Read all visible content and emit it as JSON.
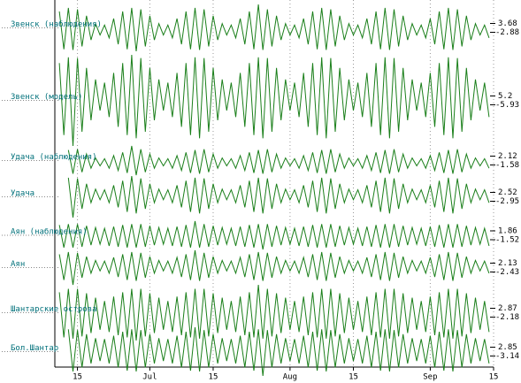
{
  "chart_data": {
    "type": "line",
    "grid": true,
    "xlim": [
      9,
      106
    ],
    "xticks": [
      {
        "value": 14,
        "label": "15"
      },
      {
        "value": 30,
        "label": "Jul"
      },
      {
        "value": 44,
        "label": "15"
      },
      {
        "value": 61,
        "label": "Aug"
      },
      {
        "value": 75,
        "label": "15"
      },
      {
        "value": 92,
        "label": "Sep"
      },
      {
        "value": 106,
        "label": "15"
      }
    ],
    "x": [
      10,
      11,
      12,
      13,
      14,
      15,
      16,
      17,
      18,
      19,
      20,
      21,
      22,
      23,
      24,
      25,
      26,
      27,
      28,
      29,
      30,
      31,
      32,
      33,
      34,
      35,
      36,
      37,
      38,
      39,
      40,
      41,
      42,
      43,
      44,
      45,
      46,
      47,
      48,
      49,
      50,
      51,
      52,
      53,
      54,
      55,
      56,
      57,
      58,
      59,
      60,
      61,
      62,
      63,
      64,
      65,
      66,
      67,
      68,
      69,
      70,
      71,
      72,
      73,
      74,
      75,
      76,
      77,
      78,
      79,
      80,
      81,
      82,
      83,
      84,
      85,
      86,
      87,
      88,
      89,
      90,
      91,
      92,
      93,
      94,
      95,
      96,
      97,
      98,
      99,
      100,
      101,
      102,
      103,
      104,
      105
    ],
    "series": [
      {
        "name": "Звенск (наблюдения)",
        "color": "#1a7f1a",
        "ylim": [
          -2.88,
          3.68
        ],
        "values": [
          2.7,
          -2.6,
          3.2,
          -2.7,
          3.0,
          -2.2,
          2.1,
          -1.3,
          1.0,
          -0.6,
          0.8,
          -1.0,
          1.7,
          -1.9,
          2.7,
          -2.6,
          3.2,
          -2.88,
          3.0,
          -2.2,
          2.1,
          -1.3,
          1.0,
          -0.6,
          0.8,
          -1.0,
          1.7,
          -1.9,
          2.7,
          -2.6,
          3.2,
          -2.7,
          3.0,
          -2.2,
          2.1,
          -1.3,
          1.0,
          -0.6,
          0.8,
          -1.0,
          1.7,
          -1.9,
          2.7,
          -2.6,
          3.68,
          -2.7,
          3.0,
          -2.2,
          2.1,
          -1.3,
          1.0,
          -0.6,
          0.8,
          -1.0,
          1.7,
          -1.9,
          2.7,
          -2.6,
          3.2,
          -2.7,
          3.0,
          -2.2,
          2.1,
          -1.3,
          1.0,
          -0.6,
          0.8,
          -1.0,
          1.7,
          -1.9,
          2.7,
          -2.6,
          3.2,
          -2.7,
          3.0,
          -2.2,
          2.1,
          -1.3,
          1.0,
          -0.6,
          0.8,
          -1.0,
          1.7,
          -1.9,
          2.7,
          -2.6,
          3.2,
          -2.7,
          3.0,
          -2.2,
          2.1,
          -1.3,
          1.0,
          -0.6,
          0.8,
          -1.0
        ]
      },
      {
        "name": "Звенск (модель)",
        "color": "#1a7f1a",
        "ylim": [
          -5.93,
          5.2
        ],
        "values": [
          4.2,
          -4.6,
          4.9,
          -5.93,
          4.8,
          -4.2,
          3.6,
          -2.8,
          2.2,
          -1.6,
          1.8,
          -2.4,
          3.0,
          -3.6,
          4.2,
          -4.6,
          5.2,
          -5.0,
          4.8,
          -4.2,
          3.6,
          -2.8,
          2.2,
          -1.6,
          1.8,
          -2.4,
          3.0,
          -3.6,
          4.2,
          -4.6,
          4.9,
          -5.0,
          4.8,
          -4.2,
          3.6,
          -2.8,
          2.2,
          -1.6,
          1.8,
          -2.4,
          3.0,
          -3.6,
          4.2,
          -4.6,
          4.9,
          -5.0,
          4.8,
          -4.2,
          3.6,
          -2.8,
          2.2,
          -1.6,
          1.8,
          -2.4,
          3.0,
          -3.6,
          4.2,
          -4.6,
          4.9,
          -5.0,
          4.8,
          -4.2,
          3.6,
          -2.8,
          2.2,
          -1.6,
          1.8,
          -2.4,
          3.0,
          -3.6,
          4.2,
          -4.6,
          4.9,
          -5.0,
          4.8,
          -4.2,
          3.6,
          -2.8,
          2.2,
          -1.6,
          1.8,
          -2.4,
          3.0,
          -3.6,
          4.2,
          -4.6,
          4.9,
          -5.0,
          4.8,
          -4.2,
          3.6,
          -2.8,
          2.2,
          -1.6,
          1.8,
          -2.4
        ]
      },
      {
        "name": "Удача (наблюдения)",
        "color": "#1a7f1a",
        "ylim": [
          -1.58,
          2.12
        ],
        "values": [
          null,
          null,
          1.6,
          -1.4,
          1.7,
          -1.2,
          1.1,
          -0.7,
          0.6,
          -0.4,
          0.5,
          -0.7,
          0.9,
          -1.0,
          1.3,
          -1.3,
          2.12,
          -1.58,
          1.7,
          -1.2,
          1.1,
          -0.7,
          0.6,
          -0.4,
          0.5,
          -0.7,
          0.9,
          -1.0,
          1.3,
          -1.3,
          1.6,
          -1.4,
          1.7,
          -1.2,
          1.1,
          -0.7,
          0.6,
          -0.4,
          0.5,
          -0.7,
          0.9,
          -1.0,
          1.3,
          -1.3,
          1.6,
          -1.4,
          1.7,
          -1.2,
          1.1,
          -0.7,
          0.6,
          -0.4,
          0.5,
          -0.7,
          0.9,
          -1.0,
          1.3,
          -1.3,
          1.6,
          -1.4,
          1.7,
          -1.2,
          1.1,
          -0.7,
          0.6,
          -0.4,
          0.5,
          -0.7,
          0.9,
          -1.0,
          1.3,
          -1.3,
          1.6,
          -1.4,
          1.7,
          -1.2,
          1.1,
          -0.7,
          0.6,
          -0.4,
          0.5,
          -0.7,
          0.9,
          -1.0,
          1.3,
          -1.3,
          1.6,
          -1.4,
          1.7,
          -1.2,
          1.1,
          -0.7,
          0.6,
          -0.4,
          0.5,
          -0.7
        ]
      },
      {
        "name": "Удача",
        "color": "#1a7f1a",
        "ylim": [
          -2.95,
          2.52
        ],
        "values": [
          null,
          null,
          2.3,
          -2.95,
          2.2,
          -1.8,
          1.5,
          -1.0,
          0.8,
          -0.6,
          0.7,
          -1.0,
          1.3,
          -1.6,
          1.9,
          -2.2,
          2.52,
          -2.4,
          2.2,
          -1.8,
          1.5,
          -1.0,
          0.8,
          -0.6,
          0.7,
          -1.0,
          1.3,
          -1.6,
          1.9,
          -2.2,
          2.3,
          -2.4,
          2.2,
          -1.8,
          1.5,
          -1.0,
          0.8,
          -0.6,
          0.7,
          -1.0,
          1.3,
          -1.6,
          1.9,
          -2.2,
          2.3,
          -2.4,
          2.2,
          -1.8,
          1.5,
          -1.0,
          0.8,
          -0.6,
          0.7,
          -1.0,
          1.3,
          -1.6,
          1.9,
          -2.2,
          2.3,
          -2.4,
          2.2,
          -1.8,
          1.5,
          -1.0,
          0.8,
          -0.6,
          0.7,
          -1.0,
          1.3,
          -1.6,
          1.9,
          -2.2,
          2.3,
          -2.4,
          2.2,
          -1.8,
          1.5,
          -1.0,
          0.8,
          -0.6,
          0.7,
          -1.0,
          1.3,
          -1.6,
          1.9,
          -2.2,
          2.3,
          -2.4,
          2.2,
          -1.8,
          1.5,
          -1.0,
          0.8,
          -0.6,
          0.7,
          -1.0
        ]
      },
      {
        "name": "Аян (наблюдения)",
        "color": "#1a7f1a",
        "ylim": [
          -1.52,
          1.86
        ],
        "values": [
          1.4,
          -1.3,
          1.5,
          -1.3,
          1.5,
          -1.2,
          1.3,
          -1.0,
          1.1,
          -0.9,
          1.0,
          -1.1,
          1.2,
          -1.2,
          1.4,
          -1.3,
          1.5,
          -1.3,
          1.5,
          -1.2,
          1.3,
          -1.0,
          1.1,
          -0.9,
          1.0,
          -1.1,
          1.2,
          -1.2,
          1.4,
          -1.3,
          1.86,
          -1.3,
          1.5,
          -1.2,
          1.3,
          -1.0,
          1.1,
          -0.9,
          1.0,
          -1.1,
          1.2,
          -1.2,
          1.4,
          -1.3,
          1.5,
          -1.52,
          1.5,
          -1.2,
          1.3,
          -1.0,
          1.1,
          -0.9,
          1.0,
          -1.1,
          1.2,
          -1.2,
          1.4,
          -1.3,
          1.5,
          -1.3,
          1.5,
          -1.2,
          1.3,
          -1.0,
          1.1,
          -0.9,
          1.0,
          -1.1,
          1.2,
          -1.2,
          1.4,
          -1.3,
          1.5,
          -1.3,
          1.5,
          -1.2,
          1.3,
          -1.0,
          1.1,
          -0.9,
          1.0,
          -1.1,
          1.2,
          -1.2,
          1.4,
          -1.3,
          1.5,
          -1.3,
          1.5,
          -1.2,
          1.3,
          -1.0,
          1.1,
          -0.9,
          1.0,
          -1.1
        ]
      },
      {
        "name": "Аян",
        "color": "#1a7f1a",
        "ylim": [
          -2.43,
          2.13
        ],
        "values": [
          1.6,
          -1.8,
          1.9,
          -2.43,
          1.8,
          -1.5,
          1.3,
          -0.9,
          0.8,
          -0.6,
          0.7,
          -0.9,
          1.2,
          -1.4,
          1.6,
          -1.8,
          1.9,
          -1.9,
          1.8,
          -1.5,
          1.3,
          -0.9,
          0.8,
          -0.6,
          0.7,
          -0.9,
          1.2,
          -1.4,
          1.6,
          -1.8,
          2.13,
          -1.9,
          1.8,
          -1.5,
          1.3,
          -0.9,
          0.8,
          -0.6,
          0.7,
          -0.9,
          1.2,
          -1.4,
          1.6,
          -1.8,
          1.9,
          -1.9,
          1.8,
          -1.5,
          1.3,
          -0.9,
          0.8,
          -0.6,
          0.7,
          -0.9,
          1.2,
          -1.4,
          1.6,
          -1.8,
          1.9,
          -1.9,
          1.8,
          -1.5,
          1.3,
          -0.9,
          0.8,
          -0.6,
          0.7,
          -0.9,
          1.2,
          -1.4,
          1.6,
          -1.8,
          1.9,
          -1.9,
          1.8,
          -1.5,
          1.3,
          -0.9,
          0.8,
          -0.6,
          0.7,
          -0.9,
          1.2,
          -1.4,
          1.6,
          -1.8,
          1.9,
          -1.9,
          1.8,
          -1.5,
          1.3,
          -0.9,
          0.8,
          -0.6,
          0.7,
          -0.9
        ]
      },
      {
        "name": "Шантарские острова",
        "color": "#1a7f1a",
        "ylim": [
          -2.18,
          2.87
        ],
        "values": [
          2.2,
          -1.9,
          2.5,
          -2.0,
          2.5,
          -1.8,
          2.1,
          -1.5,
          1.7,
          -1.2,
          1.4,
          -1.4,
          1.8,
          -1.7,
          2.2,
          -1.9,
          2.5,
          -2.18,
          2.5,
          -1.8,
          2.1,
          -1.5,
          1.7,
          -1.2,
          1.4,
          -1.4,
          1.8,
          -1.7,
          2.2,
          -1.9,
          2.5,
          -2.0,
          2.5,
          -1.8,
          2.1,
          -1.5,
          1.7,
          -1.2,
          1.4,
          -1.4,
          1.8,
          -1.7,
          2.2,
          -1.9,
          2.87,
          -2.0,
          2.5,
          -1.8,
          2.1,
          -1.5,
          1.7,
          -1.2,
          1.4,
          -1.4,
          1.8,
          -1.7,
          2.2,
          -1.9,
          2.5,
          -2.0,
          2.5,
          -1.8,
          2.1,
          -1.5,
          1.7,
          -1.2,
          1.4,
          -1.4,
          1.8,
          -1.7,
          2.2,
          -1.9,
          2.5,
          -2.0,
          2.5,
          -1.8,
          2.1,
          -1.5,
          1.7,
          -1.2,
          1.4,
          -1.4,
          1.8,
          -1.7,
          2.2,
          -1.9,
          2.5,
          -2.0,
          2.5,
          -1.8,
          2.1,
          -1.5,
          1.7,
          -1.2,
          1.4,
          -1.4
        ]
      },
      {
        "name": "Бол.Шантар",
        "color": "#1a7f1a",
        "ylim": [
          -3.14,
          2.85
        ],
        "values": [
          null,
          null,
          2.6,
          -2.6,
          2.5,
          -2.1,
          2.0,
          -1.6,
          1.5,
          -1.3,
          1.4,
          -1.6,
          1.8,
          -2.1,
          2.3,
          -2.5,
          2.6,
          -2.6,
          2.5,
          -2.1,
          2.0,
          -1.6,
          1.5,
          -1.3,
          1.4,
          -1.6,
          1.8,
          -2.1,
          2.3,
          -2.5,
          2.85,
          -2.6,
          2.5,
          -2.1,
          2.0,
          -1.6,
          1.5,
          -1.3,
          1.4,
          -1.6,
          1.8,
          -2.1,
          2.3,
          -2.5,
          2.6,
          -3.14,
          2.5,
          -2.1,
          2.0,
          -1.6,
          1.5,
          -1.3,
          1.4,
          -1.6,
          1.8,
          -2.1,
          2.3,
          -2.5,
          2.6,
          -2.6,
          2.5,
          -2.1,
          2.0,
          -1.6,
          1.5,
          -1.3,
          1.4,
          -1.6,
          1.8,
          -2.1,
          2.3,
          -2.5,
          2.6,
          -2.6,
          2.5,
          -2.1,
          2.0,
          -1.6,
          1.5,
          -1.3,
          1.4,
          -1.6,
          1.8,
          -2.1,
          2.3,
          -2.5,
          2.6,
          -2.6,
          2.5,
          -2.1,
          2.0,
          -1.6,
          1.5,
          -1.3,
          1.4,
          -1.6
        ]
      }
    ]
  }
}
